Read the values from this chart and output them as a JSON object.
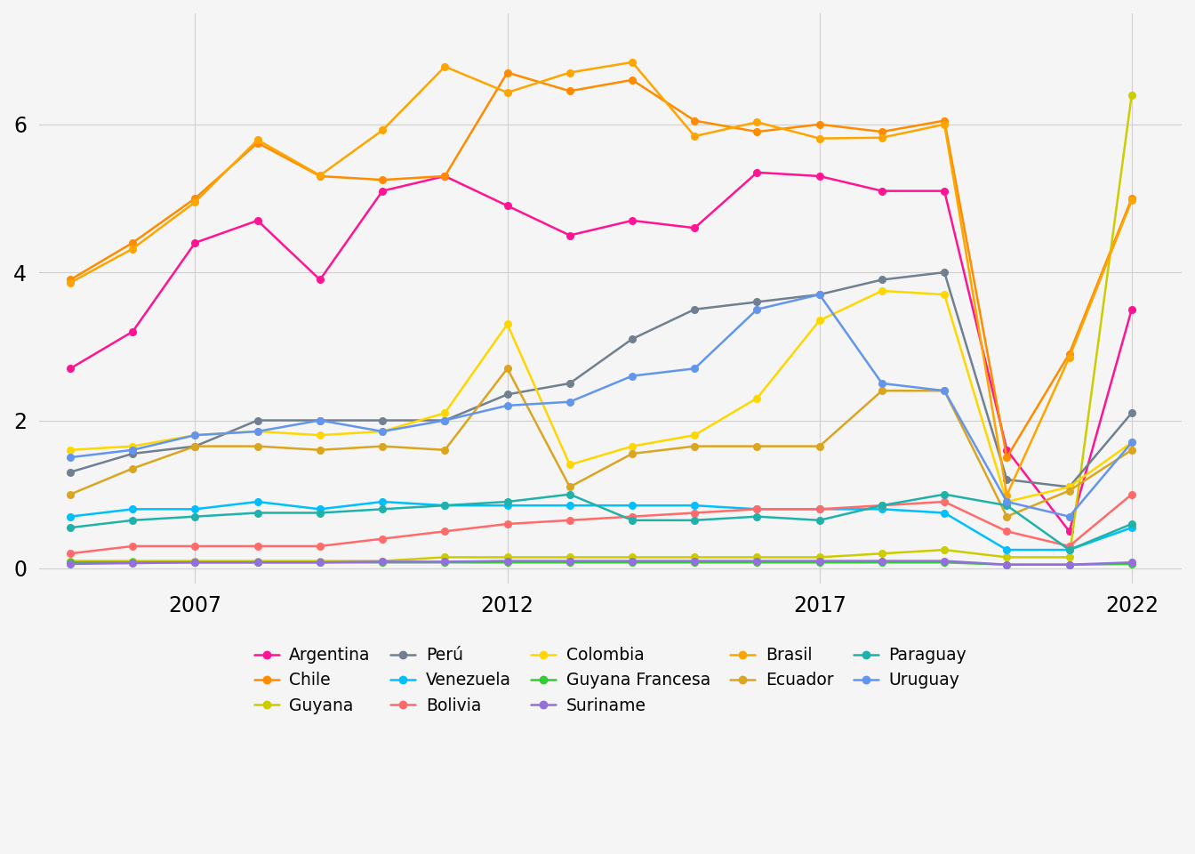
{
  "years": [
    2005,
    2006,
    2007,
    2008,
    2009,
    2010,
    2011,
    2012,
    2013,
    2014,
    2015,
    2016,
    2017,
    2018,
    2019,
    2020,
    2021,
    2022
  ],
  "series": {
    "Argentina": {
      "color": "#FF1493",
      "values": [
        2.7,
        3.2,
        4.4,
        4.7,
        3.9,
        5.1,
        5.3,
        4.9,
        4.5,
        4.7,
        4.6,
        5.35,
        5.3,
        5.1,
        5.1,
        1.6,
        0.5,
        3.5
      ]
    },
    "Chile": {
      "color": "#FF8C00",
      "values": [
        3.9,
        4.4,
        5.0,
        5.75,
        5.3,
        5.25,
        5.3,
        6.7,
        6.45,
        6.6,
        6.05,
        5.9,
        6.0,
        5.9,
        6.05,
        1.5,
        2.9,
        5.0
      ]
    },
    "Guyana": {
      "color": "#CCCC00",
      "values": [
        0.1,
        0.1,
        0.1,
        0.1,
        0.1,
        0.1,
        0.15,
        0.15,
        0.15,
        0.15,
        0.15,
        0.15,
        0.15,
        0.2,
        0.25,
        0.15,
        0.15,
        6.4
      ]
    },
    "Perú": {
      "color": "#708090",
      "values": [
        1.3,
        1.55,
        1.65,
        2.0,
        2.0,
        2.0,
        2.0,
        2.35,
        2.5,
        3.1,
        3.5,
        3.6,
        3.7,
        3.9,
        4.0,
        1.2,
        1.1,
        2.1
      ]
    },
    "Venezuela": {
      "color": "#00BFFF",
      "values": [
        0.7,
        0.8,
        0.8,
        0.9,
        0.8,
        0.9,
        0.85,
        0.85,
        0.85,
        0.85,
        0.85,
        0.8,
        0.8,
        0.8,
        0.75,
        0.25,
        0.25,
        0.55
      ]
    },
    "Bolivia": {
      "color": "#FF6B6B",
      "values": [
        0.2,
        0.3,
        0.3,
        0.3,
        0.3,
        0.4,
        0.5,
        0.6,
        0.65,
        0.7,
        0.75,
        0.8,
        0.8,
        0.85,
        0.9,
        0.5,
        0.3,
        1.0
      ]
    },
    "Colombia": {
      "color": "#FFD700",
      "values": [
        1.6,
        1.65,
        1.8,
        1.85,
        1.8,
        1.85,
        2.1,
        3.3,
        1.4,
        1.65,
        1.8,
        2.3,
        3.35,
        3.75,
        3.7,
        0.9,
        1.1,
        1.7
      ]
    },
    "Guyana Francesa": {
      "color": "#32CD32",
      "values": [
        0.08,
        0.08,
        0.08,
        0.08,
        0.08,
        0.08,
        0.08,
        0.08,
        0.08,
        0.08,
        0.08,
        0.08,
        0.08,
        0.08,
        0.08,
        0.05,
        0.05,
        0.06
      ]
    },
    "Suriname": {
      "color": "#9370DB",
      "values": [
        0.06,
        0.07,
        0.08,
        0.08,
        0.08,
        0.09,
        0.09,
        0.1,
        0.1,
        0.1,
        0.1,
        0.1,
        0.1,
        0.1,
        0.1,
        0.05,
        0.05,
        0.08
      ]
    },
    "Brasil": {
      "color": "#FFA500",
      "values": [
        3.86,
        4.32,
        4.95,
        5.79,
        5.31,
        5.92,
        6.78,
        6.43,
        6.7,
        6.84,
        5.84,
        6.03,
        5.81,
        5.82,
        6.0,
        0.99,
        2.85,
        4.97
      ]
    },
    "Ecuador": {
      "color": "#DAA520",
      "values": [
        1.0,
        1.35,
        1.65,
        1.65,
        1.6,
        1.65,
        1.6,
        2.7,
        1.1,
        1.55,
        1.65,
        1.65,
        1.65,
        2.4,
        2.4,
        0.7,
        1.05,
        1.6
      ]
    },
    "Paraguay": {
      "color": "#20B2AA",
      "values": [
        0.55,
        0.65,
        0.7,
        0.75,
        0.75,
        0.8,
        0.85,
        0.9,
        1.0,
        0.65,
        0.65,
        0.7,
        0.65,
        0.85,
        1.0,
        0.85,
        0.25,
        0.6
      ]
    },
    "Uruguay": {
      "color": "#6495ED",
      "values": [
        1.5,
        1.6,
        1.8,
        1.85,
        2.0,
        1.85,
        2.0,
        2.2,
        2.25,
        2.6,
        2.7,
        3.5,
        3.7,
        2.5,
        2.4,
        0.9,
        0.7,
        1.7
      ]
    }
  },
  "xlim": [
    2004.5,
    2022.8
  ],
  "ylim": [
    -0.2,
    7.5
  ],
  "yticks": [
    0,
    2,
    4,
    6
  ],
  "xticks": [
    2007,
    2012,
    2017,
    2022
  ],
  "background_color": "#F5F5F5",
  "grid_color": "#D0D0D0",
  "legend_order": [
    "Argentina",
    "Chile",
    "Guyana",
    "Perú",
    "Venezuela",
    "Bolivia",
    "Colombia",
    "Guyana Francesa",
    "Suriname",
    "Brasil",
    "Ecuador",
    "Paraguay",
    "Uruguay"
  ]
}
